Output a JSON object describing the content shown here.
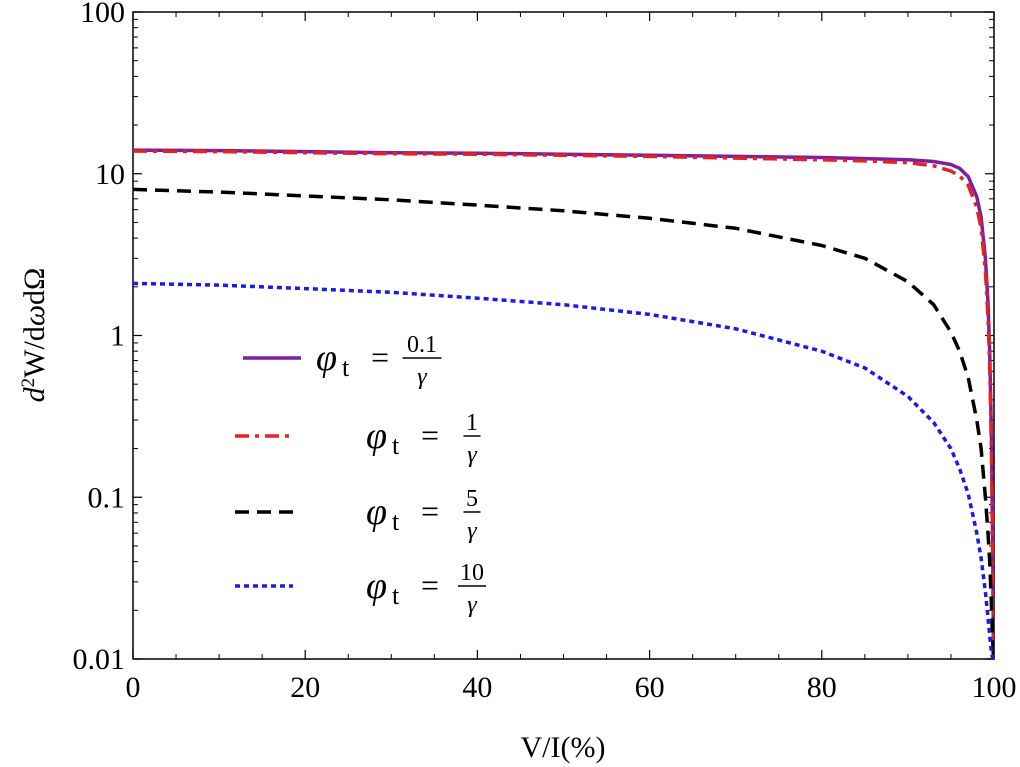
{
  "chart_data": {
    "type": "line",
    "title": "",
    "xlabel": "V/I(%)",
    "ylabel_parts": {
      "d": "d",
      "sup": "2",
      "rest": "W/d",
      "omega": "ω",
      "tail": "dΩ"
    },
    "ylabel": "d²W/dωdΩ",
    "xlim": [
      0,
      100
    ],
    "ylim": [
      0.01,
      100
    ],
    "yscale": "log",
    "xticks": [
      "0",
      "20",
      "40",
      "60",
      "80",
      "100"
    ],
    "xtick_values": [
      0,
      20,
      40,
      60,
      80,
      100
    ],
    "yticks": [
      "0.01",
      "0.1",
      "1",
      "10",
      "100"
    ],
    "ytick_values": [
      0.01,
      0.1,
      1,
      10,
      100
    ],
    "legend_position": "center-left",
    "series": [
      {
        "name": "φt = 0.1/γ",
        "legend": {
          "phi": "φ",
          "sub": "t",
          "eq": "=",
          "num": "0.1",
          "den": "γ"
        },
        "color": "#7b1fa2",
        "style": "solid",
        "x": [
          0,
          10,
          20,
          30,
          40,
          50,
          60,
          70,
          80,
          85,
          90,
          93,
          95,
          96,
          97,
          98,
          98.5,
          99,
          99.3,
          99.5,
          99.7,
          99.85,
          99.95
        ],
        "values": [
          14,
          13.9,
          13.7,
          13.5,
          13.4,
          13.2,
          13.0,
          12.8,
          12.6,
          12.4,
          12.2,
          11.9,
          11.4,
          10.8,
          9.6,
          7.2,
          5.4,
          3.0,
          1.6,
          0.8,
          0.25,
          0.05,
          0.01
        ]
      },
      {
        "name": "φt = 1/γ",
        "legend": {
          "phi": "φ",
          "sub": "t",
          "eq": "=",
          "num": "1",
          "den": "γ"
        },
        "color": "#e82020",
        "style": "dashdot",
        "x": [
          0,
          10,
          20,
          30,
          40,
          50,
          60,
          70,
          80,
          85,
          90,
          93,
          95,
          96,
          97,
          98,
          98.5,
          99,
          99.3,
          99.5,
          99.7,
          99.85,
          99.95
        ],
        "values": [
          13.8,
          13.7,
          13.5,
          13.3,
          13.2,
          13.0,
          12.8,
          12.5,
          12.2,
          12.0,
          11.7,
          11.2,
          10.4,
          9.7,
          8.5,
          6.2,
          4.6,
          2.5,
          1.3,
          0.65,
          0.2,
          0.04,
          0.01
        ]
      },
      {
        "name": "φt = 5/γ",
        "legend": {
          "phi": "φ",
          "sub": "t",
          "eq": "=",
          "num": "5",
          "den": "γ"
        },
        "color": "#000000",
        "style": "dashed",
        "x": [
          0,
          10,
          20,
          30,
          40,
          50,
          60,
          70,
          80,
          85,
          90,
          93,
          95,
          96,
          97,
          98,
          98.5,
          99,
          99.3,
          99.5,
          99.7,
          99.85,
          99.95
        ],
        "values": [
          8.0,
          7.7,
          7.3,
          6.9,
          6.4,
          5.9,
          5.3,
          4.6,
          3.6,
          3.0,
          2.15,
          1.55,
          1.05,
          0.8,
          0.55,
          0.3,
          0.2,
          0.1,
          0.06,
          0.04,
          0.022,
          0.013,
          0.01
        ]
      },
      {
        "name": "φt = 10/γ",
        "legend": {
          "phi": "φ",
          "sub": "t",
          "eq": "=",
          "num": "10",
          "den": "γ"
        },
        "color": "#1a1aee",
        "style": "dotted",
        "x": [
          0,
          10,
          20,
          30,
          40,
          50,
          60,
          70,
          80,
          85,
          90,
          93,
          95,
          96,
          97,
          98,
          98.5,
          99,
          99.3,
          99.5,
          99.7,
          99.85,
          99.95
        ],
        "values": [
          2.1,
          2.05,
          1.95,
          1.85,
          1.7,
          1.55,
          1.35,
          1.1,
          0.8,
          0.63,
          0.42,
          0.29,
          0.2,
          0.15,
          0.105,
          0.06,
          0.042,
          0.026,
          0.018,
          0.014,
          0.011,
          0.01,
          0.01
        ]
      }
    ]
  }
}
